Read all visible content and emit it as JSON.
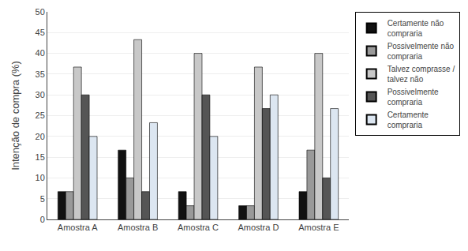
{
  "chart_data": {
    "type": "bar",
    "categories": [
      "Amostra A",
      "Amostra B",
      "Amostra C",
      "Amostra D",
      "Amostra E"
    ],
    "series": [
      {
        "name": "Certamente não\ncompraria",
        "color": "#111111",
        "values": [
          6.7,
          16.7,
          6.7,
          3.3,
          6.7
        ]
      },
      {
        "name": "Possivelmente não\ncompraria",
        "color": "#999999",
        "values": [
          6.7,
          10.0,
          3.3,
          3.3,
          16.7
        ]
      },
      {
        "name": "Talvez comprasse /\ntalvez não",
        "color": "#c8c8c8",
        "values": [
          36.7,
          43.3,
          40.0,
          36.7,
          40.0
        ]
      },
      {
        "name": "Possivelmente\ncompraria",
        "color": "#555555",
        "values": [
          30.0,
          6.7,
          30.0,
          26.7,
          10.0
        ]
      },
      {
        "name": "Certamente\ncompraria",
        "color": "#dce6f1",
        "values": [
          20.0,
          23.3,
          20.0,
          30.0,
          26.7
        ]
      }
    ],
    "ylabel": "Intenção de compra (%)",
    "ylim": [
      0,
      50
    ],
    "yticks": [
      0,
      5,
      10,
      15,
      20,
      25,
      30,
      35,
      40,
      45,
      50
    ],
    "grid": true,
    "legend": "right"
  }
}
